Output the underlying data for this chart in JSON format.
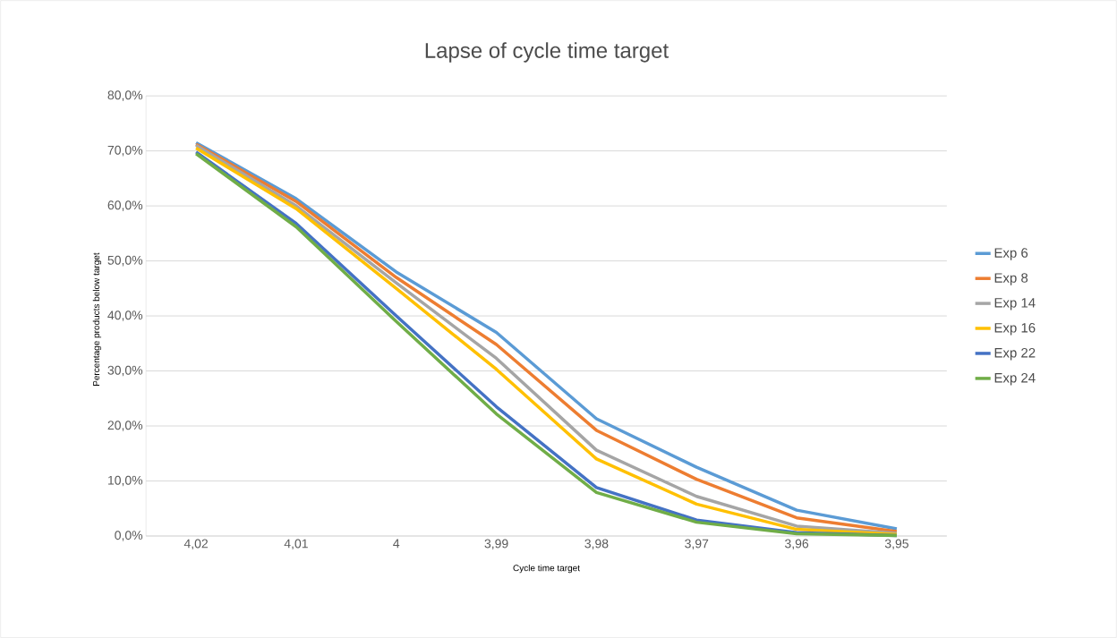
{
  "chart_data": {
    "type": "line",
    "title": "Lapse of cycle time target",
    "xlabel": "Cycle time target",
    "ylabel": "Percentage products below target",
    "categories": [
      "4,02",
      "4,01",
      "4",
      "3,99",
      "3,98",
      "3,97",
      "3,96",
      "3,95"
    ],
    "ylim": [
      0,
      80
    ],
    "yticks": [
      {
        "value": 0,
        "label": "0,0%"
      },
      {
        "value": 10,
        "label": "10,0%"
      },
      {
        "value": 20,
        "label": "20,0%"
      },
      {
        "value": 30,
        "label": "30,0%"
      },
      {
        "value": 40,
        "label": "40,0%"
      },
      {
        "value": 50,
        "label": "50,0%"
      },
      {
        "value": 60,
        "label": "60,0%"
      },
      {
        "value": 70,
        "label": "70,0%"
      },
      {
        "value": 80,
        "label": "80,0%"
      }
    ],
    "grid": "y",
    "legend": "right",
    "marker": "none",
    "line_style": "solid",
    "series": [
      {
        "name": "Exp 6",
        "color": "#5b9bd5",
        "values": [
          71.5,
          61.3,
          48,
          37,
          21.3,
          12.5,
          4.7,
          1.3
        ]
      },
      {
        "name": "Exp 8",
        "color": "#ed7d31",
        "values": [
          71.2,
          60.8,
          47,
          34.8,
          19.2,
          10.3,
          3.3,
          0.8
        ]
      },
      {
        "name": "Exp 14",
        "color": "#a5a5a5",
        "values": [
          71,
          60,
          46,
          32.3,
          15.6,
          7.2,
          1.8,
          0.5
        ]
      },
      {
        "name": "Exp 16",
        "color": "#ffc000",
        "values": [
          70.5,
          59.5,
          45,
          30.3,
          14,
          5.8,
          1.2,
          0.3
        ]
      },
      {
        "name": "Exp 22",
        "color": "#4472c4",
        "values": [
          69.8,
          56.8,
          40,
          23.5,
          8.8,
          2.9,
          0.6,
          0.1
        ]
      },
      {
        "name": "Exp 24",
        "color": "#70ad47",
        "values": [
          69.5,
          56.2,
          39,
          22.2,
          7.9,
          2.5,
          0.4,
          0.1
        ]
      }
    ]
  }
}
